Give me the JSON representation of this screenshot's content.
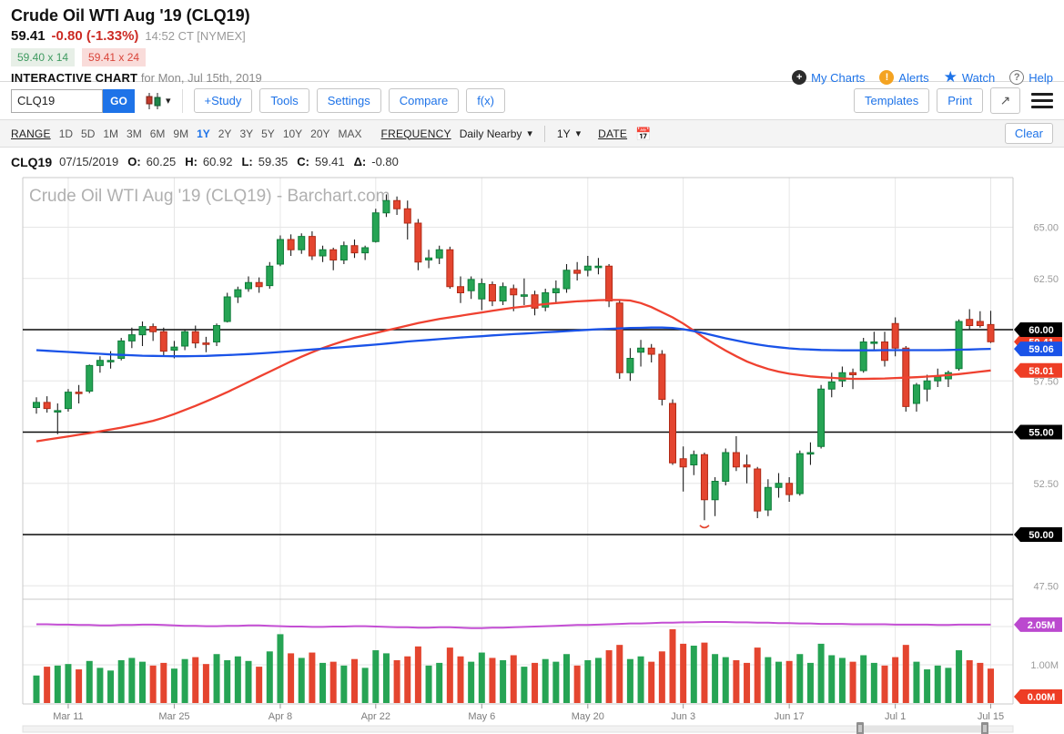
{
  "header": {
    "title": "Crude Oil WTI Aug '19 (CLQ19)",
    "last": "59.41",
    "change": "-0.80 (-1.33%)",
    "timestamp": "14:52 CT [NYMEX]",
    "bid": "59.40 x 14",
    "ask": "59.41 x 24",
    "chart_label": "INTERACTIVE CHART",
    "chart_label_suffix": "for Mon, Jul 15th, 2019",
    "links": {
      "my_charts": "My Charts",
      "alerts": "Alerts",
      "watch": "Watch",
      "help": "Help"
    }
  },
  "toolbar": {
    "symbol_value": "CLQ19",
    "go_label": "GO",
    "buttons": [
      "+Study",
      "Tools",
      "Settings",
      "Compare",
      "f(x)"
    ],
    "templates_label": "Templates",
    "print_label": "Print"
  },
  "rangebar": {
    "range_label": "RANGE",
    "ranges": [
      "1D",
      "5D",
      "1M",
      "3M",
      "6M",
      "9M",
      "1Y",
      "2Y",
      "3Y",
      "5Y",
      "10Y",
      "20Y",
      "MAX"
    ],
    "active_range": "1Y",
    "frequency_label": "FREQUENCY",
    "frequency_value": "Daily Nearby",
    "period_value": "1Y",
    "date_label": "DATE",
    "clear_label": "Clear"
  },
  "ohlc_row": {
    "symbol": "CLQ19",
    "date": "07/15/2019",
    "o_label": "O:",
    "o": "60.25",
    "h_label": "H:",
    "h": "60.92",
    "l_label": "L:",
    "l": "59.35",
    "c_label": "C:",
    "c": "59.41",
    "d_label": "Δ:",
    "d": "-0.80"
  },
  "chart_data": {
    "type": "candlestick",
    "watermark": "Crude Oil WTI Aug '19 (CLQ19) - Barchart.com",
    "x_ticks": [
      {
        "label": "Mar 11",
        "index": 3
      },
      {
        "label": "Mar 25",
        "index": 13
      },
      {
        "label": "Apr 8",
        "index": 23
      },
      {
        "label": "Apr 22",
        "index": 32
      },
      {
        "label": "May 6",
        "index": 42
      },
      {
        "label": "May 20",
        "index": 52
      },
      {
        "label": "Jun 3",
        "index": 61
      },
      {
        "label": "Jun 17",
        "index": 71
      },
      {
        "label": "Jul 1",
        "index": 81
      },
      {
        "label": "Jul 15",
        "index": 90
      }
    ],
    "y_axis": {
      "gridline_values": [
        65.0,
        62.5,
        57.5,
        52.5,
        47.5
      ],
      "gridline_labels": [
        "65.00",
        "62.50",
        "57.50",
        "52.50",
        "47.50"
      ],
      "hlines": [
        {
          "price": 60.0,
          "label": "60.00"
        },
        {
          "price": 55.0,
          "label": "55.00"
        },
        {
          "price": 50.0,
          "label": "50.00"
        }
      ],
      "last_price_tag": {
        "value": 59.41,
        "label": "59.41"
      },
      "ma_slow_tag": {
        "value": 59.06,
        "label": "59.06"
      },
      "ma_fast_tag": {
        "value": 58.01,
        "label": "58.01"
      }
    },
    "volume_axis": {
      "gridline_values": [
        1.0,
        2.0
      ],
      "gridline_label": "1.00M",
      "gridline_label_value": 1.0,
      "oi_tag": {
        "value": 2.05,
        "label": "2.05M"
      },
      "last_volume_tag": {
        "label": "0.00M"
      }
    },
    "dates": [
      "03/06",
      "03/07",
      "03/08",
      "03/11",
      "03/12",
      "03/13",
      "03/14",
      "03/15",
      "03/18",
      "03/19",
      "03/20",
      "03/21",
      "03/22",
      "03/25",
      "03/26",
      "03/27",
      "03/28",
      "03/29",
      "04/01",
      "04/02",
      "04/03",
      "04/04",
      "04/05",
      "04/08",
      "04/09",
      "04/10",
      "04/11",
      "04/12",
      "04/15",
      "04/16",
      "04/17",
      "04/18",
      "04/22",
      "04/23",
      "04/24",
      "04/25",
      "04/26",
      "04/29",
      "04/30",
      "05/01",
      "05/02",
      "05/03",
      "05/06",
      "05/07",
      "05/08",
      "05/09",
      "05/10",
      "05/13",
      "05/14",
      "05/15",
      "05/16",
      "05/17",
      "05/20",
      "05/21",
      "05/22",
      "05/23",
      "05/24",
      "05/28",
      "05/29",
      "05/30",
      "05/31",
      "06/03",
      "06/04",
      "06/05",
      "06/06",
      "06/07",
      "06/10",
      "06/11",
      "06/12",
      "06/13",
      "06/14",
      "06/17",
      "06/18",
      "06/19",
      "06/20",
      "06/21",
      "06/24",
      "06/25",
      "06/26",
      "06/27",
      "06/28",
      "07/01",
      "07/02",
      "07/03",
      "07/05",
      "07/08",
      "07/09",
      "07/10",
      "07/11",
      "07/12",
      "07/15"
    ],
    "candles": [
      [
        56.2,
        56.7,
        55.9,
        56.45
      ],
      [
        56.45,
        56.75,
        55.95,
        56.15
      ],
      [
        56.0,
        56.4,
        54.9,
        56.05
      ],
      [
        56.15,
        57.1,
        56.0,
        56.95
      ],
      [
        56.95,
        57.3,
        56.4,
        56.9
      ],
      [
        57.0,
        58.3,
        56.9,
        58.25
      ],
      [
        58.25,
        58.7,
        57.9,
        58.5
      ],
      [
        58.5,
        58.95,
        58.1,
        58.5
      ],
      [
        58.6,
        59.6,
        58.5,
        59.45
      ],
      [
        59.45,
        60.1,
        59.1,
        59.75
      ],
      [
        59.75,
        60.4,
        59.2,
        60.15
      ],
      [
        60.15,
        60.3,
        59.45,
        59.9
      ],
      [
        59.9,
        60.1,
        58.7,
        58.95
      ],
      [
        59.0,
        59.45,
        58.6,
        59.15
      ],
      [
        59.2,
        60.0,
        59.0,
        59.9
      ],
      [
        59.9,
        60.2,
        59.1,
        59.35
      ],
      [
        59.35,
        59.65,
        58.9,
        59.3
      ],
      [
        59.4,
        60.3,
        59.2,
        60.2
      ],
      [
        60.4,
        61.8,
        60.35,
        61.6
      ],
      [
        61.6,
        62.1,
        61.3,
        61.95
      ],
      [
        62.0,
        62.6,
        61.85,
        62.3
      ],
      [
        62.3,
        62.55,
        61.8,
        62.1
      ],
      [
        62.15,
        63.3,
        62.0,
        63.1
      ],
      [
        63.2,
        64.6,
        63.1,
        64.4
      ],
      [
        64.4,
        64.65,
        63.6,
        63.9
      ],
      [
        63.9,
        64.7,
        63.7,
        64.55
      ],
      [
        64.55,
        64.8,
        63.4,
        63.6
      ],
      [
        63.6,
        64.1,
        63.3,
        63.9
      ],
      [
        63.9,
        64.0,
        62.9,
        63.4
      ],
      [
        63.4,
        64.3,
        63.2,
        64.1
      ],
      [
        64.1,
        64.4,
        63.5,
        63.75
      ],
      [
        63.75,
        64.1,
        63.4,
        64.0
      ],
      [
        64.3,
        65.9,
        64.25,
        65.7
      ],
      [
        65.7,
        66.6,
        65.5,
        66.3
      ],
      [
        66.3,
        66.5,
        65.6,
        65.9
      ],
      [
        65.9,
        66.3,
        64.4,
        65.2
      ],
      [
        65.2,
        65.4,
        62.9,
        63.3
      ],
      [
        63.4,
        63.9,
        63.0,
        63.5
      ],
      [
        63.5,
        64.1,
        63.2,
        63.9
      ],
      [
        63.9,
        64.05,
        62.0,
        62.1
      ],
      [
        62.1,
        62.6,
        61.3,
        61.8
      ],
      [
        61.9,
        62.6,
        61.5,
        62.45
      ],
      [
        61.5,
        62.5,
        60.95,
        62.25
      ],
      [
        62.2,
        62.35,
        61.15,
        61.4
      ],
      [
        61.4,
        62.3,
        61.2,
        62.1
      ],
      [
        62.0,
        62.2,
        60.9,
        61.7
      ],
      [
        61.7,
        62.5,
        61.2,
        61.7
      ],
      [
        61.7,
        61.9,
        60.7,
        61.05
      ],
      [
        61.1,
        62.0,
        60.9,
        61.8
      ],
      [
        61.8,
        62.4,
        61.3,
        62.0
      ],
      [
        62.0,
        63.2,
        61.8,
        62.9
      ],
      [
        62.9,
        63.3,
        62.4,
        62.75
      ],
      [
        62.9,
        63.6,
        62.6,
        63.1
      ],
      [
        63.1,
        63.5,
        62.7,
        63.1
      ],
      [
        63.1,
        63.2,
        61.1,
        61.4
      ],
      [
        61.3,
        61.4,
        57.6,
        57.9
      ],
      [
        57.9,
        59.1,
        57.5,
        58.6
      ],
      [
        58.9,
        59.5,
        58.2,
        59.1
      ],
      [
        59.1,
        59.3,
        58.4,
        58.8
      ],
      [
        58.8,
        59.0,
        56.3,
        56.6
      ],
      [
        56.4,
        56.6,
        53.4,
        53.5
      ],
      [
        53.7,
        54.3,
        52.1,
        53.3
      ],
      [
        53.4,
        54.1,
        52.9,
        53.9
      ],
      [
        53.9,
        54.0,
        50.7,
        51.7
      ],
      [
        51.7,
        52.8,
        50.9,
        52.6
      ],
      [
        52.6,
        54.2,
        52.4,
        54.0
      ],
      [
        54.0,
        54.8,
        53.1,
        53.3
      ],
      [
        53.4,
        53.9,
        52.5,
        53.3
      ],
      [
        53.2,
        53.3,
        50.8,
        51.15
      ],
      [
        51.2,
        52.7,
        50.9,
        52.3
      ],
      [
        52.3,
        53.0,
        51.8,
        52.5
      ],
      [
        52.5,
        52.8,
        51.6,
        51.95
      ],
      [
        52.0,
        54.1,
        51.9,
        53.95
      ],
      [
        54.0,
        54.5,
        53.4,
        54.0
      ],
      [
        54.3,
        57.3,
        54.2,
        57.1
      ],
      [
        57.1,
        57.9,
        56.7,
        57.45
      ],
      [
        57.5,
        58.2,
        57.2,
        57.9
      ],
      [
        57.9,
        58.1,
        57.1,
        57.8
      ],
      [
        58.0,
        59.6,
        57.9,
        59.4
      ],
      [
        59.4,
        59.9,
        59.0,
        59.4
      ],
      [
        59.4,
        59.9,
        58.2,
        58.5
      ],
      [
        60.3,
        60.6,
        58.7,
        59.1
      ],
      [
        59.1,
        59.2,
        56.0,
        56.25
      ],
      [
        56.4,
        57.4,
        56.0,
        57.3
      ],
      [
        57.1,
        57.8,
        56.5,
        57.5
      ],
      [
        57.5,
        58.1,
        57.2,
        57.7
      ],
      [
        57.6,
        58.0,
        57.2,
        57.9
      ],
      [
        58.1,
        60.5,
        58.0,
        60.4
      ],
      [
        60.5,
        61.0,
        60.0,
        60.2
      ],
      [
        60.4,
        60.9,
        60.1,
        60.2
      ],
      [
        60.25,
        60.92,
        59.35,
        59.41
      ]
    ],
    "volumes": [
      0.72,
      0.95,
      0.98,
      1.02,
      0.88,
      1.1,
      0.92,
      0.85,
      1.12,
      1.18,
      1.08,
      0.98,
      1.05,
      0.9,
      1.15,
      1.2,
      1.02,
      1.28,
      1.12,
      1.22,
      1.1,
      0.95,
      1.35,
      1.8,
      1.3,
      1.18,
      1.32,
      1.05,
      1.08,
      0.98,
      1.15,
      0.92,
      1.38,
      1.3,
      1.12,
      1.22,
      1.48,
      0.98,
      1.05,
      1.45,
      1.22,
      1.08,
      1.32,
      1.18,
      1.12,
      1.25,
      0.95,
      1.05,
      1.15,
      1.08,
      1.28,
      0.98,
      1.12,
      1.18,
      1.38,
      1.52,
      1.15,
      1.22,
      1.08,
      1.35,
      1.93,
      1.55,
      1.5,
      1.58,
      1.28,
      1.2,
      1.12,
      1.05,
      1.45,
      1.2,
      1.08,
      1.1,
      1.28,
      1.05,
      1.55,
      1.25,
      1.18,
      1.08,
      1.25,
      1.05,
      0.98,
      1.2,
      1.52,
      1.08,
      0.88,
      0.98,
      0.92,
      1.38,
      1.12,
      1.05,
      0.9
    ],
    "open_interest": [
      2.06,
      2.06,
      2.05,
      2.05,
      2.04,
      2.04,
      2.03,
      2.03,
      2.04,
      2.04,
      2.05,
      2.05,
      2.04,
      2.03,
      2.02,
      2.02,
      2.01,
      2.01,
      2.02,
      2.02,
      2.03,
      2.03,
      2.02,
      2.01,
      2.0,
      2.0,
      1.99,
      1.99,
      2.0,
      2.0,
      2.01,
      2.01,
      2.0,
      1.99,
      1.98,
      1.98,
      1.97,
      1.97,
      1.98,
      1.98,
      1.97,
      1.96,
      1.96,
      1.97,
      1.97,
      1.98,
      1.99,
      2.0,
      2.01,
      2.02,
      2.03,
      2.04,
      2.04,
      2.05,
      2.06,
      2.07,
      2.08,
      2.08,
      2.09,
      2.1,
      2.1,
      2.11,
      2.11,
      2.12,
      2.12,
      2.12,
      2.11,
      2.11,
      2.1,
      2.1,
      2.09,
      2.09,
      2.08,
      2.08,
      2.07,
      2.07,
      2.07,
      2.06,
      2.06,
      2.06,
      2.06,
      2.05,
      2.05,
      2.05,
      2.05,
      2.04,
      2.04,
      2.05,
      2.05,
      2.05,
      2.05
    ],
    "ma_slow": [
      59.0,
      58.97,
      58.94,
      58.91,
      58.88,
      58.85,
      58.82,
      58.79,
      58.77,
      58.75,
      58.73,
      58.72,
      58.71,
      58.7,
      58.7,
      58.71,
      58.72,
      58.74,
      58.76,
      58.78,
      58.81,
      58.84,
      58.87,
      58.91,
      58.95,
      58.99,
      59.03,
      59.07,
      59.11,
      59.15,
      59.19,
      59.23,
      59.27,
      59.32,
      59.37,
      59.42,
      59.46,
      59.5,
      59.54,
      59.58,
      59.62,
      59.65,
      59.68,
      59.72,
      59.75,
      59.78,
      59.81,
      59.84,
      59.87,
      59.9,
      59.93,
      59.96,
      59.99,
      60.02,
      60.04,
      60.06,
      60.08,
      60.09,
      60.1,
      60.1,
      60.08,
      60.02,
      59.93,
      59.82,
      59.7,
      59.58,
      59.47,
      59.37,
      59.28,
      59.2,
      59.14,
      59.09,
      59.05,
      59.03,
      59.01,
      59.0,
      58.99,
      58.99,
      58.99,
      58.99,
      59.0,
      59.0,
      59.0,
      59.0,
      59.0,
      59.0,
      59.01,
      59.02,
      59.03,
      59.05,
      59.06
    ],
    "ma_fast": [
      54.55,
      54.63,
      54.71,
      54.79,
      54.87,
      54.95,
      55.04,
      55.13,
      55.22,
      55.32,
      55.43,
      55.55,
      55.7,
      55.88,
      56.08,
      56.28,
      56.5,
      56.72,
      56.95,
      57.2,
      57.45,
      57.7,
      57.95,
      58.2,
      58.45,
      58.68,
      58.9,
      59.1,
      59.28,
      59.45,
      59.6,
      59.72,
      59.84,
      59.96,
      60.08,
      60.2,
      60.32,
      60.42,
      60.52,
      60.6,
      60.68,
      60.76,
      60.84,
      60.92,
      61.0,
      61.07,
      61.13,
      61.19,
      61.25,
      61.3,
      61.34,
      61.38,
      61.41,
      61.44,
      61.45,
      61.45,
      61.42,
      61.3,
      61.1,
      60.85,
      60.6,
      60.3,
      59.95,
      59.6,
      59.28,
      58.98,
      58.7,
      58.45,
      58.25,
      58.08,
      57.95,
      57.85,
      57.78,
      57.72,
      57.68,
      57.65,
      57.62,
      57.6,
      57.6,
      57.61,
      57.62,
      57.64,
      57.66,
      57.68,
      57.71,
      57.74,
      57.78,
      57.83,
      57.89,
      57.95,
      58.01
    ],
    "annotation": {
      "type": "low-marker",
      "index": 63,
      "price": 50.45
    },
    "colors": {
      "up": "#26a454",
      "up_stroke": "#0e7c39",
      "down": "#e4452f",
      "down_stroke": "#b12a16",
      "wick": "#1c1c1c",
      "ma_fast": "#ef4130",
      "ma_slow": "#1a53e8",
      "oi_line": "#c44fd4",
      "grid": "#e6e6e6",
      "border": "#c9c9c9",
      "black_line": "#0a0a0a",
      "axis_text": "#9b9b9b",
      "x_text": "#7d7d7d",
      "tag_black": "#000000",
      "tag_blue": "#1a53e8",
      "tag_red": "#ee3d25",
      "tag_purple": "#bb49cf",
      "watermark": "#b0b0b0"
    }
  }
}
